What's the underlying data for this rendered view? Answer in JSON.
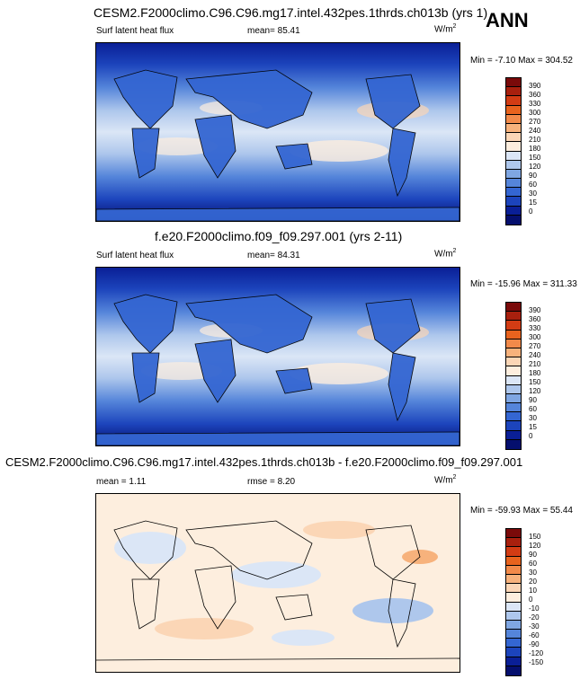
{
  "annual_label": "ANN",
  "panels": [
    {
      "title": "CESM2.F2000climo.C96.C96.mg17.intel.432pes.1thrds.ch013b (yrs 1)",
      "left_label": "Surf latent heat flux",
      "center_label": "mean=  85.41",
      "units_base": "W/m",
      "units_exp": "2",
      "minmax": "Min = -7.10 Max = 304.52",
      "colorbar": {
        "levels": [
          "390",
          "360",
          "330",
          "300",
          "270",
          "240",
          "210",
          "180",
          "150",
          "120",
          "90",
          "60",
          "30",
          "15",
          "0"
        ],
        "colors": [
          "#7a0a0a",
          "#a8200e",
          "#d23c14",
          "#e8631e",
          "#f28a4a",
          "#f7b27c",
          "#fbd6b6",
          "#fdeede",
          "#dbe6f6",
          "#aec7ec",
          "#7fa6e2",
          "#5585da",
          "#3466d2",
          "#1c44bc",
          "#0a1f96",
          "#050f6e"
        ]
      }
    },
    {
      "title": "f.e20.F2000climo.f09_f09.297.001 (yrs 2-11)",
      "left_label": "Surf latent heat flux",
      "center_label": "mean=  84.31",
      "units_base": "W/m",
      "units_exp": "2",
      "minmax": "Min = -15.96 Max = 311.33",
      "colorbar": {
        "levels": [
          "390",
          "360",
          "330",
          "300",
          "270",
          "240",
          "210",
          "180",
          "150",
          "120",
          "90",
          "60",
          "30",
          "15",
          "0"
        ],
        "colors": [
          "#7a0a0a",
          "#a8200e",
          "#d23c14",
          "#e8631e",
          "#f28a4a",
          "#f7b27c",
          "#fbd6b6",
          "#fdeede",
          "#dbe6f6",
          "#aec7ec",
          "#7fa6e2",
          "#5585da",
          "#3466d2",
          "#1c44bc",
          "#0a1f96",
          "#050f6e"
        ]
      }
    },
    {
      "title": "CESM2.F2000climo.C96.C96.mg17.intel.432pes.1thrds.ch013b - f.e20.F2000climo.f09_f09.297.001",
      "left_label": "mean =   1.11",
      "center_label": "rmse =   8.20",
      "units_base": "W/m",
      "units_exp": "2",
      "minmax": "Min = -59.93 Max = 55.44",
      "colorbar": {
        "levels": [
          "150",
          "120",
          "90",
          "60",
          "30",
          "20",
          "10",
          "0",
          "-10",
          "-20",
          "-30",
          "-60",
          "-90",
          "-120",
          "-150"
        ],
        "colors": [
          "#7a0a0a",
          "#a8200e",
          "#d23c14",
          "#e8631e",
          "#f28a4a",
          "#f7b27c",
          "#fbd6b6",
          "#fdeede",
          "#dbe6f6",
          "#aec7ec",
          "#7fa6e2",
          "#5585da",
          "#3466d2",
          "#1c44bc",
          "#0a1f96",
          "#050f6e"
        ]
      }
    }
  ],
  "chart_data": [
    {
      "type": "heatmap",
      "title": "CESM2.F2000climo.C96.C96.mg17.intel.432pes.1thrds.ch013b (yrs 1)",
      "variable": "Surf latent heat flux",
      "units": "W/m2",
      "mean": 85.41,
      "min": -7.1,
      "max": 304.52,
      "contour_levels": [
        0,
        15,
        30,
        60,
        90,
        120,
        150,
        180,
        210,
        240,
        270,
        300,
        330,
        360,
        390
      ]
    },
    {
      "type": "heatmap",
      "title": "f.e20.F2000climo.f09_f09.297.001 (yrs 2-11)",
      "variable": "Surf latent heat flux",
      "units": "W/m2",
      "mean": 84.31,
      "min": -15.96,
      "max": 311.33,
      "contour_levels": [
        0,
        15,
        30,
        60,
        90,
        120,
        150,
        180,
        210,
        240,
        270,
        300,
        330,
        360,
        390
      ]
    },
    {
      "type": "heatmap",
      "title": "CESM2.F2000climo.C96.C96.mg17.intel.432pes.1thrds.ch013b - f.e20.F2000climo.f09_f09.297.001",
      "units": "W/m2",
      "mean": 1.11,
      "rmse": 8.2,
      "min": -59.93,
      "max": 55.44,
      "contour_levels": [
        -150,
        -120,
        -90,
        -60,
        -30,
        -20,
        -10,
        0,
        10,
        20,
        30,
        60,
        90,
        120,
        150
      ]
    }
  ]
}
